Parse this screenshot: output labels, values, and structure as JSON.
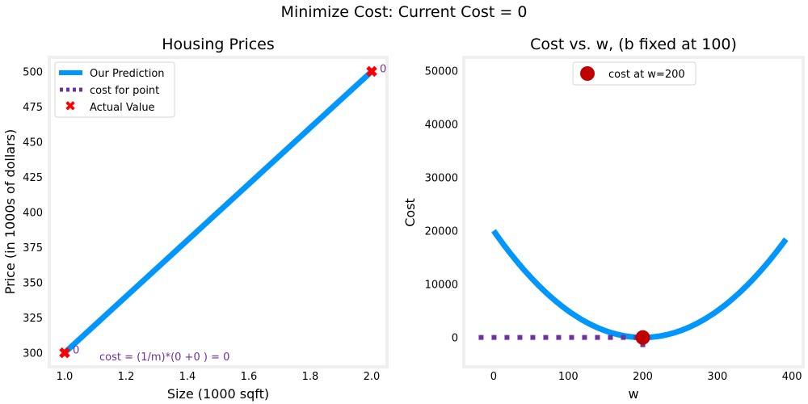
{
  "suptitle": "Minimize Cost: Current Cost = 0",
  "chart_data": [
    {
      "type": "line",
      "title": "Housing Prices",
      "xlabel": "Size (1000 sqft)",
      "ylabel": "Price (in 1000s of dollars)",
      "xlim": [
        0.95,
        2.05
      ],
      "ylim": [
        290,
        510
      ],
      "xticks": [
        1.0,
        1.2,
        1.4,
        1.6,
        1.8,
        2.0
      ],
      "xtick_labels": [
        "1.0",
        "1.2",
        "1.4",
        "1.6",
        "1.8",
        "2.0"
      ],
      "yticks": [
        300,
        325,
        350,
        375,
        400,
        425,
        450,
        475,
        500
      ],
      "ytick_labels": [
        "300",
        "325",
        "350",
        "375",
        "400",
        "425",
        "450",
        "475",
        "500"
      ],
      "grid": false,
      "legend_position": "top-left",
      "legend": [
        "Our Prediction",
        "cost for point",
        "Actual Value"
      ],
      "prediction": {
        "x": [
          1.0,
          2.0
        ],
        "y": [
          300,
          500
        ]
      },
      "actual": {
        "points": [
          {
            "x": 1.0,
            "y": 300
          },
          {
            "x": 2.0,
            "y": 500
          }
        ],
        "labels": [
          "0",
          "0"
        ]
      },
      "annotation": "cost = (1/m)*(0 +0 ) = 0",
      "colors": {
        "prediction": "#0096ff",
        "actual": "#ff0000",
        "cost": "#7030a0",
        "label": "#7030a0"
      }
    },
    {
      "type": "line",
      "title": "Cost vs. w, (b fixed at 100)",
      "xlabel": "w",
      "ylabel": "Cost",
      "xlim": [
        -40,
        415
      ],
      "ylim": [
        -5500,
        52500
      ],
      "xticks": [
        0,
        100,
        200,
        300,
        400
      ],
      "xtick_labels": [
        "0",
        "100",
        "200",
        "300",
        "400"
      ],
      "yticks": [
        0,
        10000,
        20000,
        30000,
        40000,
        50000
      ],
      "ytick_labels": [
        "0",
        "10000",
        "20000",
        "30000",
        "40000",
        "50000"
      ],
      "grid": false,
      "legend_position": "top-center",
      "legend": [
        "cost at w=200"
      ],
      "curve": {
        "formula": "0.5*(w-200)^2",
        "w_range": [
          0,
          392
        ]
      },
      "marker": {
        "w": 200,
        "cost": 0
      },
      "dotted_line": {
        "x": [
          -20,
          200
        ],
        "y": 0,
        "vertical_to": -1800
      },
      "colors": {
        "curve": "#0096ff",
        "marker": "#c00000",
        "dotted": "#7030a0"
      }
    }
  ]
}
